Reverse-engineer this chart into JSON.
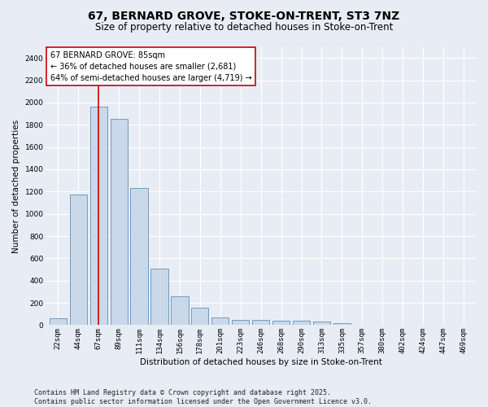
{
  "title1": "67, BERNARD GROVE, STOKE-ON-TRENT, ST3 7NZ",
  "title2": "Size of property relative to detached houses in Stoke-on-Trent",
  "xlabel": "Distribution of detached houses by size in Stoke-on-Trent",
  "ylabel": "Number of detached properties",
  "categories": [
    "22sqm",
    "44sqm",
    "67sqm",
    "89sqm",
    "111sqm",
    "134sqm",
    "156sqm",
    "178sqm",
    "201sqm",
    "223sqm",
    "246sqm",
    "268sqm",
    "290sqm",
    "313sqm",
    "335sqm",
    "357sqm",
    "380sqm",
    "402sqm",
    "424sqm",
    "447sqm",
    "469sqm"
  ],
  "values": [
    60,
    1170,
    1960,
    1850,
    1230,
    510,
    260,
    160,
    70,
    50,
    50,
    40,
    40,
    30,
    20,
    5,
    5,
    5,
    5,
    5,
    5
  ],
  "bar_color": "#c9d9ea",
  "bar_edge_color": "#7399bb",
  "vline_x_index": 2,
  "vline_color": "#cc0000",
  "annotation_text": "67 BERNARD GROVE: 85sqm\n← 36% of detached houses are smaller (2,681)\n64% of semi-detached houses are larger (4,719) →",
  "annotation_box_facecolor": "#ffffff",
  "annotation_box_edgecolor": "#cc0000",
  "ylim": [
    0,
    2500
  ],
  "yticks": [
    0,
    200,
    400,
    600,
    800,
    1000,
    1200,
    1400,
    1600,
    1800,
    2000,
    2200,
    2400
  ],
  "footer_line1": "Contains HM Land Registry data © Crown copyright and database right 2025.",
  "footer_line2": "Contains public sector information licensed under the Open Government Licence v3.0.",
  "bg_color": "#e8edf5",
  "plot_bg_color": "#e8edf5",
  "grid_color": "#ffffff",
  "title1_fontsize": 10,
  "title2_fontsize": 8.5,
  "annotation_fontsize": 7,
  "footer_fontsize": 6,
  "axis_label_fontsize": 7.5,
  "tick_fontsize": 6.5
}
